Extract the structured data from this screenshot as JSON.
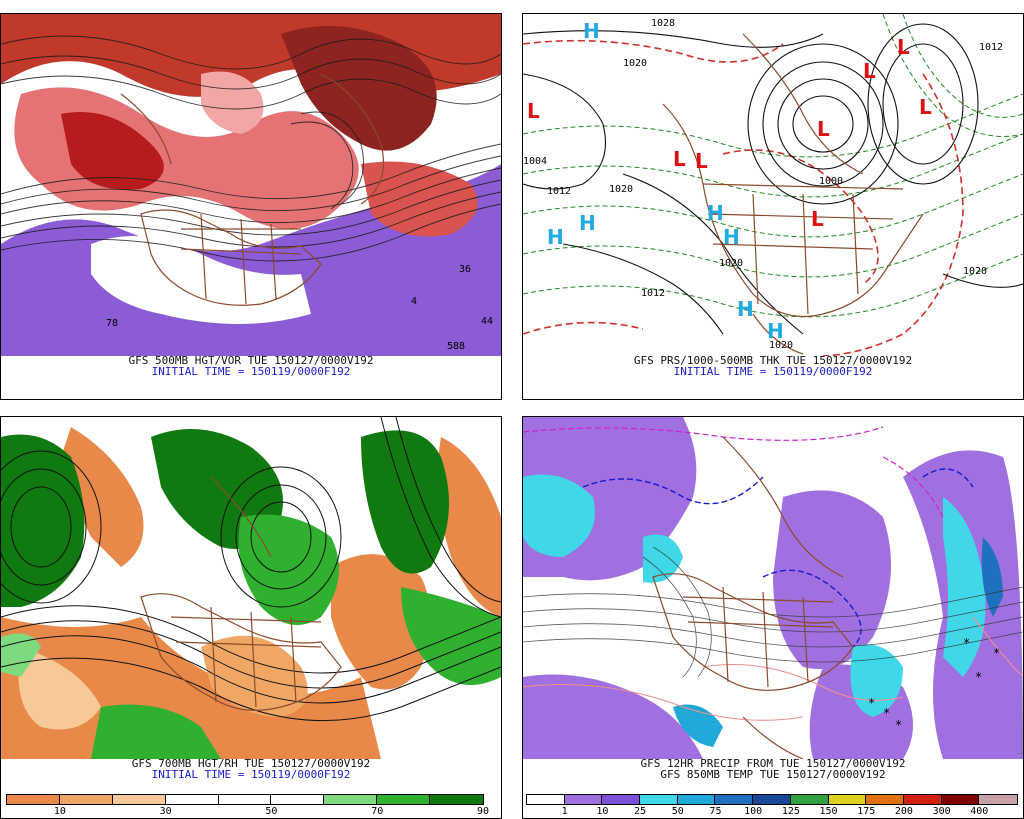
{
  "panels": [
    {
      "id": "tl",
      "caption_line1": "GFS 500MB HGT/VOR TUE 150127/0000V192",
      "caption_line2": "INITIAL TIME = 150119/0000F192",
      "map_labels": [
        "78",
        "588",
        "44",
        "36",
        "4"
      ]
    },
    {
      "id": "tr",
      "caption_line1": "GFS PRS/1000-500MB THK TUE 150127/0000V192",
      "caption_line2": "INITIAL TIME = 150119/0000F192",
      "pressure_labels": [
        "1028",
        "1020",
        "1012",
        "1004",
        "1000",
        "1020",
        "1012",
        "1020",
        "1020",
        "1020",
        "1012"
      ],
      "systems": [
        "H",
        "H",
        "H",
        "H",
        "H",
        "H",
        "H",
        "L",
        "L",
        "L",
        "L",
        "L",
        "L",
        "L",
        "L"
      ]
    },
    {
      "id": "bl",
      "caption_line1": "GFS 700MB HGT/RH TUE 150127/0000V192",
      "caption_line2": "INITIAL TIME = 150119/0000F192",
      "scale_ticks": [
        "10",
        "30",
        "50",
        "70",
        "90"
      ],
      "scale_colors": [
        "#e8894a",
        "#f0a766",
        "#f7c999",
        "#ffffff",
        "#ffffff",
        "#ffffff",
        "#7fd97f",
        "#2fb12f",
        "#107a10"
      ]
    },
    {
      "id": "br",
      "caption_line1": "GFS 12HR PRECIP FROM TUE 150127/0000V192",
      "caption_line2": "GFS 850MB TEMP TUE 150127/0000V192",
      "scale_ticks": [
        "1",
        "10",
        "25",
        "50",
        "75",
        "100",
        "125",
        "150",
        "175",
        "200",
        "300",
        "400"
      ],
      "scale_colors": [
        "#ffffff",
        "#a070e0",
        "#7a50d8",
        "#40d8e8",
        "#20a8d8",
        "#2070c0",
        "#184898",
        "#30a040",
        "#e0d020",
        "#e07010",
        "#d02010",
        "#800000",
        "#c8a0a8"
      ]
    }
  ],
  "colors": {
    "purple": "#8b5cd6",
    "red": "#d0302a",
    "pink": "#f09090",
    "brown": "#8b4a2a",
    "green": "#1d8a1d",
    "orange": "#e8894a",
    "cyan": "#38d0e8",
    "blue_text": "#1a1ad0",
    "high_color": "#20a8e0",
    "low_color": "#e01010"
  }
}
